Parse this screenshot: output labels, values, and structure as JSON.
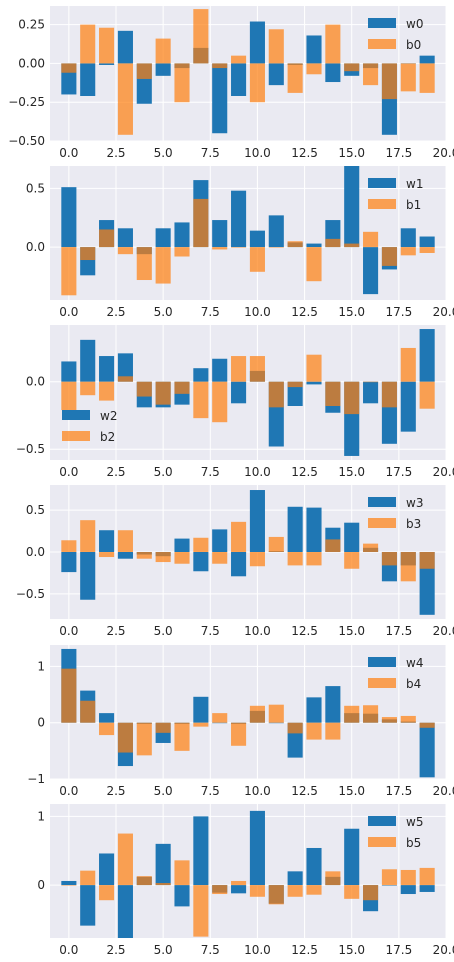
{
  "chart_data": [
    {
      "type": "bar",
      "x": [
        0,
        1,
        2,
        3,
        4,
        5,
        6,
        7,
        8,
        9,
        10,
        11,
        12,
        13,
        14,
        15,
        16,
        17,
        18,
        19
      ],
      "series": [
        {
          "name": "w0",
          "color": "#1f77b4",
          "values": [
            -0.2,
            -0.21,
            -0.01,
            0.21,
            -0.26,
            -0.08,
            -0.03,
            0.1,
            -0.45,
            -0.21,
            0.27,
            -0.14,
            -0.01,
            0.18,
            -0.12,
            -0.08,
            -0.03,
            -0.46,
            0.0,
            0.05
          ]
        },
        {
          "name": "b0",
          "color": "#ff7f0e",
          "values": [
            -0.06,
            0.25,
            0.23,
            -0.46,
            -0.1,
            0.16,
            -0.25,
            0.35,
            -0.03,
            0.05,
            -0.25,
            0.22,
            -0.19,
            -0.07,
            0.25,
            -0.05,
            -0.14,
            -0.23,
            -0.18,
            -0.19
          ]
        }
      ],
      "xticks": [
        "0.0",
        "2.5",
        "5.0",
        "7.5",
        "10.0",
        "12.5",
        "15.0",
        "17.5",
        "20.0"
      ],
      "yticks": [
        "0.25",
        "0.00",
        "−0.25",
        "−0.50"
      ],
      "xlim": [
        -1,
        20
      ],
      "ylim": [
        -0.5,
        0.37
      ],
      "legend": "top-right",
      "grid": true
    },
    {
      "type": "bar",
      "x": [
        0,
        1,
        2,
        3,
        4,
        5,
        6,
        7,
        8,
        9,
        10,
        11,
        12,
        13,
        14,
        15,
        16,
        17,
        18,
        19
      ],
      "series": [
        {
          "name": "w1",
          "color": "#1f77b4",
          "values": [
            0.51,
            -0.24,
            0.23,
            0.16,
            -0.06,
            0.16,
            0.21,
            0.57,
            0.23,
            0.48,
            0.14,
            0.27,
            0.04,
            0.03,
            0.23,
            0.69,
            -0.4,
            -0.19,
            0.16,
            0.09
          ]
        },
        {
          "name": "b1",
          "color": "#ff7f0e",
          "values": [
            -0.41,
            -0.11,
            0.15,
            -0.06,
            -0.28,
            -0.31,
            -0.08,
            0.41,
            -0.02,
            0.0,
            -0.21,
            0.0,
            0.05,
            -0.29,
            0.07,
            0.03,
            0.13,
            -0.16,
            -0.07,
            -0.05
          ]
        }
      ],
      "xticks": [
        "0.0",
        "2.5",
        "5.0",
        "7.5",
        "10.0",
        "12.5",
        "15.0",
        "17.5",
        "20.0"
      ],
      "yticks": [
        "0.5",
        "0.0"
      ],
      "xlim": [
        -1,
        20
      ],
      "ylim": [
        -0.45,
        0.69
      ],
      "legend": "top-right",
      "grid": true
    },
    {
      "type": "bar",
      "x": [
        0,
        1,
        2,
        3,
        4,
        5,
        6,
        7,
        8,
        9,
        10,
        11,
        12,
        13,
        14,
        15,
        16,
        17,
        18,
        19
      ],
      "series": [
        {
          "name": "w2",
          "color": "#1f77b4",
          "values": [
            0.15,
            0.31,
            0.19,
            0.21,
            -0.19,
            -0.19,
            -0.17,
            0.1,
            0.17,
            -0.16,
            0.08,
            -0.48,
            -0.18,
            -0.02,
            -0.23,
            -0.55,
            -0.16,
            -0.46,
            -0.37,
            0.39
          ]
        },
        {
          "name": "b2",
          "color": "#ff7f0e",
          "values": [
            -0.21,
            -0.1,
            -0.14,
            0.04,
            -0.11,
            -0.17,
            -0.09,
            -0.27,
            -0.3,
            0.19,
            0.19,
            -0.19,
            -0.04,
            0.2,
            -0.18,
            -0.24,
            0.0,
            -0.19,
            0.25,
            -0.2
          ]
        }
      ],
      "xticks": [
        "0.0",
        "2.5",
        "5.0",
        "7.5",
        "10.0",
        "12.5",
        "15.0",
        "17.5",
        "20.0"
      ],
      "yticks": [
        "0.0",
        "−0.5"
      ],
      "xlim": [
        -1,
        20
      ],
      "ylim": [
        -0.58,
        0.42
      ],
      "legend": "lower-left",
      "grid": true
    },
    {
      "type": "bar",
      "x": [
        0,
        1,
        2,
        3,
        4,
        5,
        6,
        7,
        8,
        9,
        10,
        11,
        12,
        13,
        14,
        15,
        16,
        17,
        18,
        19
      ],
      "series": [
        {
          "name": "w3",
          "color": "#1f77b4",
          "values": [
            -0.24,
            -0.57,
            0.26,
            -0.08,
            -0.03,
            -0.05,
            0.16,
            -0.23,
            0.27,
            -0.29,
            0.74,
            0.01,
            0.54,
            0.53,
            0.29,
            0.35,
            0.05,
            -0.35,
            -0.16,
            -0.75
          ]
        },
        {
          "name": "b3",
          "color": "#ff7f0e",
          "values": [
            0.14,
            0.38,
            -0.06,
            0.26,
            -0.08,
            -0.12,
            -0.14,
            0.17,
            -0.14,
            0.36,
            -0.17,
            0.18,
            -0.16,
            -0.16,
            0.15,
            -0.2,
            0.1,
            -0.16,
            -0.35,
            -0.2
          ]
        }
      ],
      "xticks": [
        "0.0",
        "2.5",
        "5.0",
        "7.5",
        "10.0",
        "12.5",
        "15.0",
        "17.5",
        "20.0"
      ],
      "yticks": [
        "0.5",
        "0.0",
        "−0.5"
      ],
      "xlim": [
        -1,
        20
      ],
      "ylim": [
        -0.8,
        0.8
      ],
      "legend": "top-right",
      "grid": true
    },
    {
      "type": "bar",
      "x": [
        0,
        1,
        2,
        3,
        4,
        5,
        6,
        7,
        8,
        9,
        10,
        11,
        12,
        13,
        14,
        15,
        16,
        17,
        18,
        19
      ],
      "series": [
        {
          "name": "w4",
          "color": "#1f77b4",
          "values": [
            1.31,
            0.57,
            0.17,
            -0.77,
            -0.02,
            -0.36,
            -0.02,
            0.46,
            0.0,
            -0.02,
            0.21,
            0.0,
            -0.62,
            0.45,
            0.65,
            0.17,
            0.16,
            0.06,
            0.02,
            -0.97
          ]
        },
        {
          "name": "b4",
          "color": "#ff7f0e",
          "values": [
            0.96,
            0.39,
            -0.22,
            -0.53,
            -0.58,
            -0.18,
            -0.5,
            -0.07,
            0.17,
            -0.41,
            0.3,
            0.32,
            -0.19,
            -0.3,
            -0.3,
            0.3,
            0.31,
            0.1,
            0.12,
            -0.09
          ]
        }
      ],
      "xticks": [
        "0.0",
        "2.5",
        "5.0",
        "7.5",
        "10.0",
        "12.5",
        "15.0",
        "17.5",
        "20.0"
      ],
      "yticks": [
        "1",
        "0",
        "−1"
      ],
      "xlim": [
        -1,
        20
      ],
      "ylim": [
        -1.0,
        1.38
      ],
      "legend": "top-right",
      "grid": true
    },
    {
      "type": "bar",
      "x": [
        0,
        1,
        2,
        3,
        4,
        5,
        6,
        7,
        8,
        9,
        10,
        11,
        12,
        13,
        14,
        15,
        16,
        17,
        18,
        19
      ],
      "series": [
        {
          "name": "w5",
          "color": "#1f77b4",
          "values": [
            0.06,
            -0.59,
            0.46,
            -0.77,
            0.12,
            0.6,
            -0.31,
            1.0,
            -0.11,
            -0.12,
            1.08,
            -0.27,
            0.2,
            0.54,
            0.12,
            0.82,
            -0.38,
            0.0,
            -0.13,
            -0.1
          ]
        },
        {
          "name": "b5",
          "color": "#ff7f0e",
          "values": [
            0.0,
            0.21,
            -0.22,
            0.75,
            0.13,
            0.03,
            0.36,
            -0.75,
            -0.13,
            0.06,
            -0.17,
            -0.28,
            -0.17,
            -0.14,
            0.2,
            -0.2,
            -0.22,
            0.23,
            0.22,
            0.25
          ]
        }
      ],
      "xticks": [
        "0.0",
        "2.5",
        "5.0",
        "7.5",
        "10.0",
        "12.5",
        "15.0",
        "17.5",
        "20.0"
      ],
      "yticks": [
        "1",
        "0"
      ],
      "xlim": [
        -1,
        20
      ],
      "ylim": [
        -0.77,
        1.18
      ],
      "legend": "top-right",
      "grid": true
    }
  ]
}
